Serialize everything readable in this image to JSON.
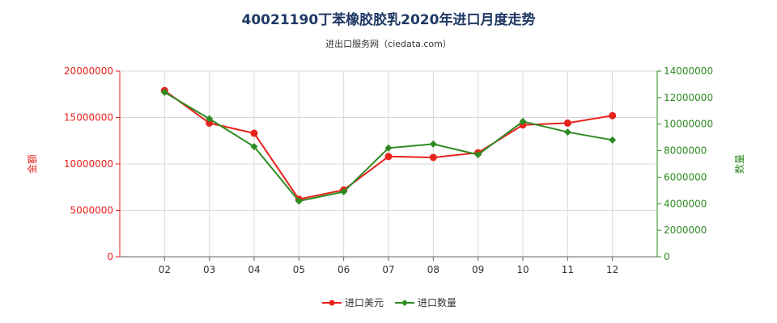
{
  "chart_data": {
    "type": "line",
    "title": "40021190丁苯橡胶胶乳2020年进口月度走势",
    "subtitle": "进出口服务网（ciedata.com）",
    "categories": [
      "02",
      "03",
      "04",
      "05",
      "06",
      "07",
      "08",
      "09",
      "10",
      "11",
      "12"
    ],
    "y_left": {
      "label": "金额",
      "ylim": [
        0,
        20000000
      ],
      "ticks": [
        "0",
        "5000000",
        "10000000",
        "15000000",
        "20000000"
      ],
      "color": "#e8221c"
    },
    "y_right": {
      "label": "数量",
      "ylim": [
        0,
        14000000
      ],
      "ticks": [
        "0",
        "2000000",
        "4000000",
        "6000000",
        "8000000",
        "10000000",
        "12000000",
        "14000000"
      ],
      "color": "#2e8b22"
    },
    "series": [
      {
        "name": "进口美元",
        "axis": "left",
        "color": "#e8221c",
        "values": [
          17900000,
          14400000,
          13300000,
          6200000,
          7200000,
          10800000,
          10700000,
          11200000,
          14200000,
          14400000,
          15200000
        ]
      },
      {
        "name": "进口数量",
        "axis": "right",
        "color": "#2e8b22",
        "values": [
          12400000,
          10400000,
          8300000,
          4200000,
          4900000,
          8200000,
          8500000,
          7700000,
          10200000,
          9400000,
          8800000
        ]
      }
    ],
    "grid": true,
    "legend_position": "bottom-center"
  }
}
